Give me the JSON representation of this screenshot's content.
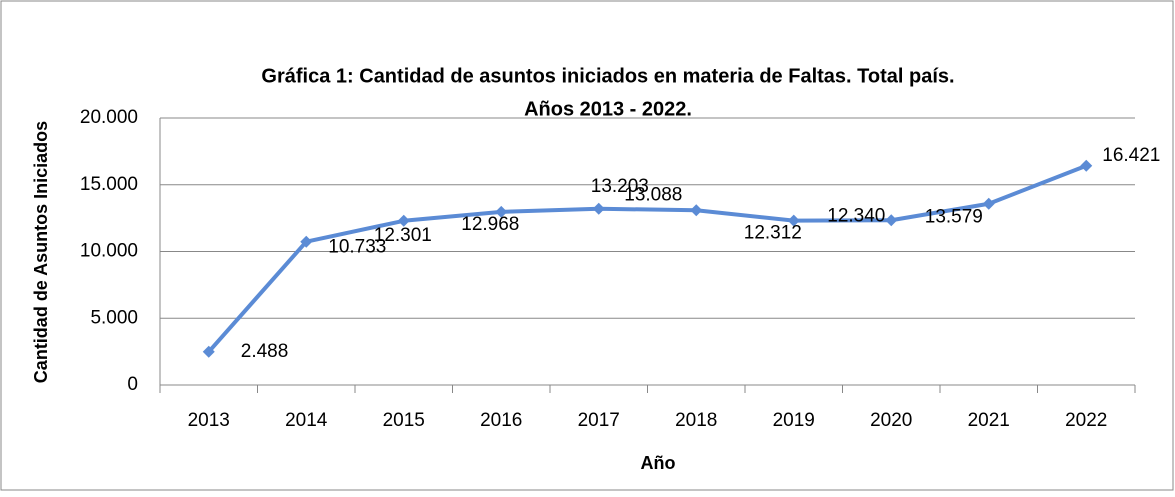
{
  "chart_data": {
    "type": "line",
    "title": [
      "Gráfica 1: Cantidad de asuntos iniciados en materia de Faltas. Total país.",
      "Años 2013 - 2022."
    ],
    "x_label": "Año",
    "y_label": "Cantidad de Asuntos Iniciados",
    "categories": [
      "2013",
      "2014",
      "2015",
      "2016",
      "2017",
      "2018",
      "2019",
      "2020",
      "2021",
      "2022"
    ],
    "series": [
      {
        "name": "Asuntos iniciados",
        "color": "#5b8bd5",
        "values": [
          2488,
          10733,
          12301,
          12968,
          13203,
          13088,
          12312,
          12340,
          13579,
          16421
        ],
        "value_labels": [
          "2.488",
          "10.733",
          "12.301",
          "12.968",
          "13.203",
          "13.088",
          "12.312",
          "12.340",
          "13.579",
          "16.421"
        ]
      }
    ],
    "ylim": [
      0,
      20000
    ],
    "yticks": [
      0,
      {
        "value": 5000,
        "label": "5.000"
      },
      {
        "value": 10000,
        "label": "10.000"
      },
      {
        "value": 15000,
        "label": "15.000"
      },
      {
        "value": 20000,
        "label": "20.000"
      }
    ],
    "grid": true
  }
}
